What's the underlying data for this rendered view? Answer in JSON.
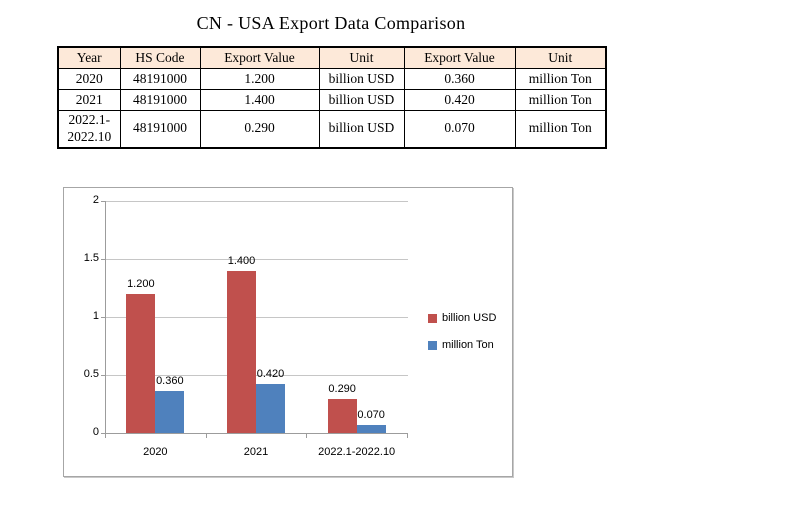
{
  "title": "CN - USA Export Data Comparison",
  "table": {
    "header_bg": "#FDE9D9",
    "headers": [
      "Year",
      "HS Code",
      "Export Value",
      "Unit",
      "Export Value",
      "Unit"
    ],
    "rows": [
      [
        "2020",
        "48191000",
        "1.200",
        "billion USD",
        "0.360",
        "million Ton"
      ],
      [
        "2021",
        "48191000",
        "1.400",
        "billion USD",
        "0.420",
        "million Ton"
      ],
      [
        "2022.1-2022.10",
        "48191000",
        "0.290",
        "billion USD",
        "0.070",
        "million Ton"
      ]
    ]
  },
  "chart_data": {
    "type": "bar",
    "title": "",
    "categories": [
      "2020",
      "2021",
      "2022.1-2022.10"
    ],
    "series": [
      {
        "name": "billion USD",
        "color": "#C0504D",
        "values": [
          1.2,
          1.4,
          0.29
        ],
        "labels": [
          "1.200",
          "1.400",
          "0.290"
        ]
      },
      {
        "name": "million Ton",
        "color": "#4F81BD",
        "values": [
          0.36,
          0.42,
          0.07
        ],
        "labels": [
          "0.360",
          "0.420",
          "0.070"
        ]
      }
    ],
    "xlabel": "",
    "ylabel": "",
    "ylim": [
      0,
      2
    ],
    "yticks": [
      0,
      0.5,
      1,
      1.5,
      2
    ],
    "ytick_labels": [
      "0",
      "0.5",
      "1",
      "1.5",
      "2"
    ],
    "grid": true,
    "legend_position": "right",
    "grid_color": "#C6C6C6",
    "axis_color": "#9C9C9C"
  }
}
